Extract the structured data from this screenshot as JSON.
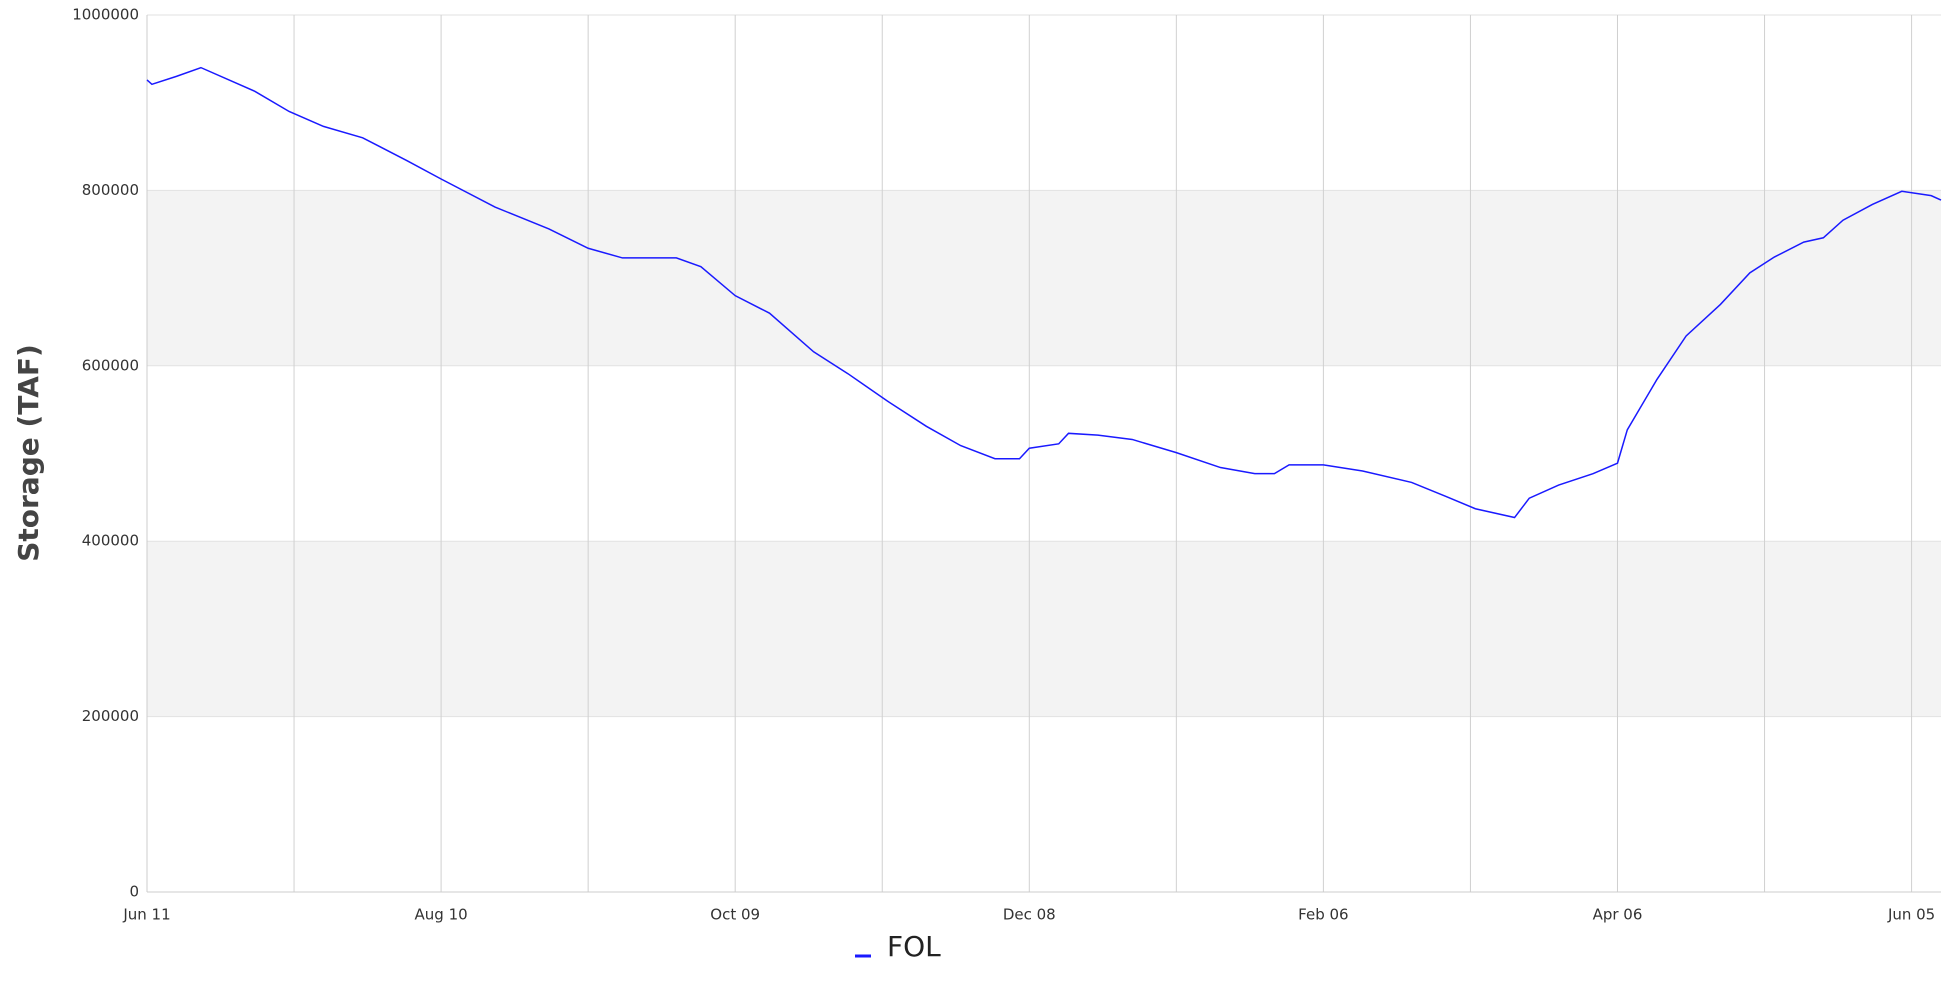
{
  "chart_data": {
    "type": "line",
    "ylabel": "Storage (TAF)",
    "x": [
      0,
      1,
      6,
      11,
      22,
      29,
      36,
      44,
      53,
      60,
      71,
      82,
      90,
      97,
      108,
      113,
      120,
      127,
      136,
      143,
      151,
      159,
      166,
      173,
      178,
      180,
      186,
      188,
      194,
      201,
      210,
      219,
      226,
      230,
      233,
      240,
      248,
      258,
      265,
      271,
      279,
      282,
      288,
      295,
      300,
      302,
      308,
      314,
      321,
      327,
      332,
      338,
      342,
      346,
      352,
      358,
      364,
      366
    ],
    "series": [
      {
        "name": "FOL",
        "color": "#1a1aff",
        "values": [
          926000,
          921000,
          930000,
          940000,
          913000,
          890000,
          873000,
          860000,
          834000,
          813000,
          781000,
          756000,
          734000,
          723000,
          723000,
          713000,
          680000,
          660000,
          616000,
          591000,
          560000,
          531000,
          509000,
          494000,
          494000,
          506000,
          511000,
          523000,
          521000,
          516000,
          501000,
          484000,
          477000,
          477000,
          487000,
          487000,
          480000,
          467000,
          451000,
          437000,
          427000,
          449000,
          464000,
          477000,
          489000,
          527000,
          584000,
          634000,
          670000,
          706000,
          724000,
          741000,
          746000,
          766000,
          784000,
          799000,
          794000,
          789000
        ]
      }
    ],
    "xlim": [
      0,
      366
    ],
    "xticks": [
      {
        "value": 0,
        "label": "Jun 11"
      },
      {
        "value": 60,
        "label": "Aug 10"
      },
      {
        "value": 120,
        "label": "Oct 09"
      },
      {
        "value": 180,
        "label": "Dec 08"
      },
      {
        "value": 240,
        "label": "Feb 06"
      },
      {
        "value": 300,
        "label": "Apr 06"
      },
      {
        "value": 360,
        "label": "Jun 05"
      }
    ],
    "ylim": [
      0,
      1000000
    ],
    "yticks": [
      0,
      200000,
      400000,
      600000,
      800000,
      1000000
    ],
    "grid": true,
    "legend": "bottom"
  }
}
